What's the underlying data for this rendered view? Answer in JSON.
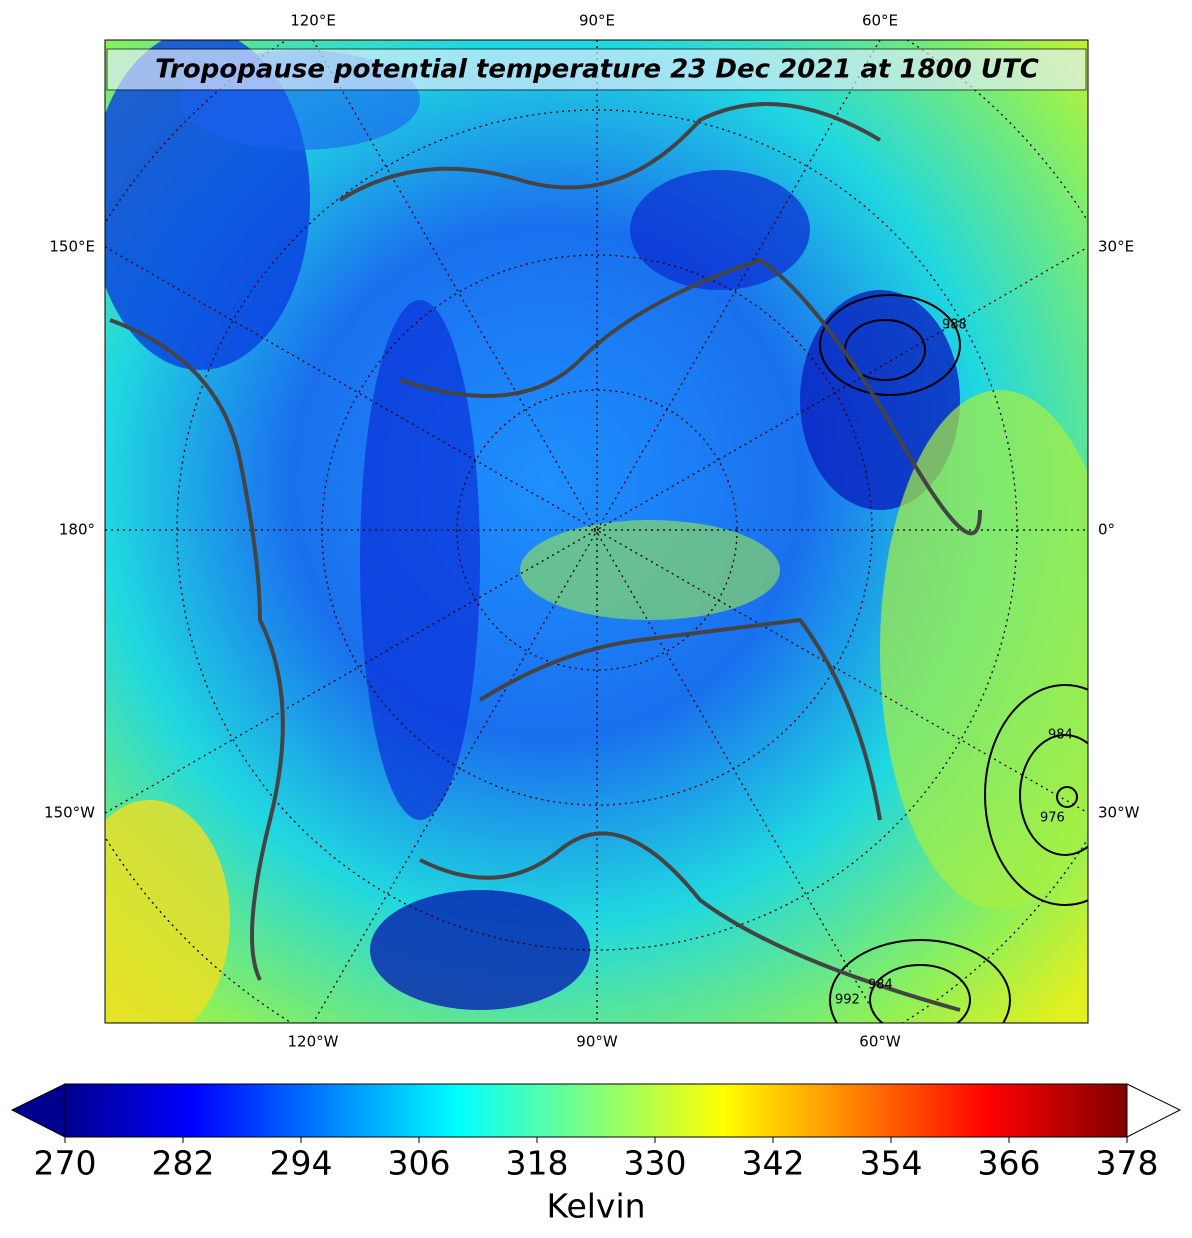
{
  "map": {
    "title": "Tropopause potential temperature 23 Dec 2021 at 1800 UTC",
    "top_labels": [
      "120°E",
      "90°E",
      "60°E"
    ],
    "bottom_labels": [
      "120°W",
      "90°W",
      "60°W"
    ],
    "left_labels": [
      "150°E",
      "180°",
      "150°W"
    ],
    "right_labels": [
      "30°E",
      "0°",
      "30°W"
    ],
    "contour_labels": [
      "988",
      "984",
      "976",
      "992",
      "984"
    ]
  },
  "colorbar": {
    "label": "Kelvin",
    "range": [
      270,
      378
    ],
    "ticks": [
      270,
      282,
      294,
      306,
      318,
      330,
      342,
      354,
      366,
      378
    ]
  }
}
